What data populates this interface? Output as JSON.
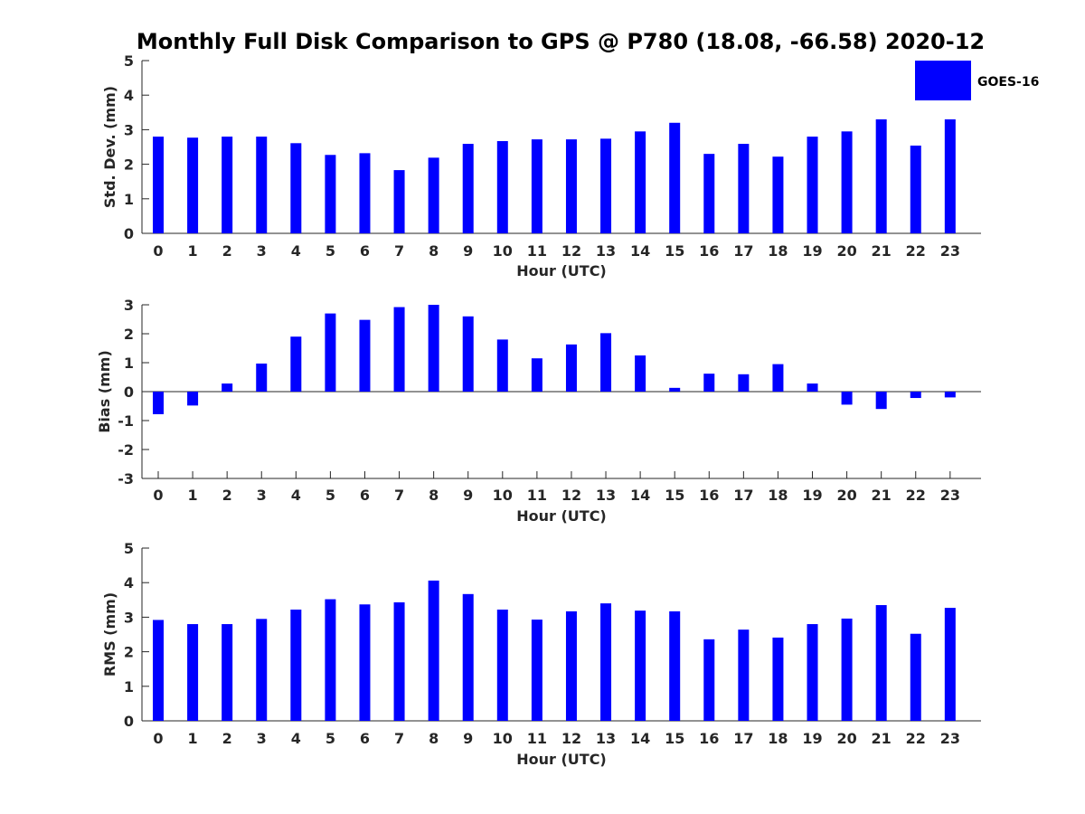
{
  "chart_data": [
    {
      "type": "bar",
      "title": "Monthly Full Disk Comparison to GPS @ P780 (18.08, -66.58) 2020-12",
      "xlabel": "Hour (UTC)",
      "ylabel": "Std. Dev. (mm)",
      "ylim": [
        0,
        5
      ],
      "yticks": [
        0,
        1,
        2,
        3,
        4,
        5
      ],
      "categories": [
        "0",
        "1",
        "2",
        "3",
        "4",
        "5",
        "6",
        "7",
        "8",
        "9",
        "10",
        "11",
        "12",
        "13",
        "14",
        "15",
        "16",
        "17",
        "18",
        "19",
        "20",
        "21",
        "22",
        "23"
      ],
      "series": [
        {
          "name": "GOES-16",
          "color": "#0000ff",
          "values": [
            2.8,
            2.77,
            2.8,
            2.8,
            2.61,
            2.27,
            2.32,
            1.83,
            2.19,
            2.59,
            2.67,
            2.72,
            2.72,
            2.74,
            2.95,
            3.2,
            2.3,
            2.59,
            2.22,
            2.8,
            2.95,
            3.3,
            2.54,
            3.3
          ]
        }
      ],
      "legend": {
        "entries": [
          "GOES-16"
        ],
        "position": "top-right"
      }
    },
    {
      "type": "bar",
      "xlabel": "Hour (UTC)",
      "ylabel": "Bias (mm)",
      "ylim": [
        -3,
        3
      ],
      "yticks": [
        -3,
        -2,
        -1,
        0,
        1,
        2,
        3
      ],
      "zero_line": true,
      "categories": [
        "0",
        "1",
        "2",
        "3",
        "4",
        "5",
        "6",
        "7",
        "8",
        "9",
        "10",
        "11",
        "12",
        "13",
        "14",
        "15",
        "16",
        "17",
        "18",
        "19",
        "20",
        "21",
        "22",
        "23"
      ],
      "series": [
        {
          "name": "GOES-16",
          "color": "#0000ff",
          "values": [
            -0.78,
            -0.48,
            0.28,
            0.97,
            1.9,
            2.7,
            2.48,
            2.92,
            3.0,
            2.6,
            1.8,
            1.15,
            1.63,
            2.02,
            1.25,
            0.13,
            0.62,
            0.6,
            0.95,
            0.28,
            -0.45,
            -0.6,
            -0.22,
            -0.2
          ]
        }
      ]
    },
    {
      "type": "bar",
      "xlabel": "Hour (UTC)",
      "ylabel": "RMS (mm)",
      "ylim": [
        0,
        5
      ],
      "yticks": [
        0,
        1,
        2,
        3,
        4,
        5
      ],
      "categories": [
        "0",
        "1",
        "2",
        "3",
        "4",
        "5",
        "6",
        "7",
        "8",
        "9",
        "10",
        "11",
        "12",
        "13",
        "14",
        "15",
        "16",
        "17",
        "18",
        "19",
        "20",
        "21",
        "22",
        "23"
      ],
      "series": [
        {
          "name": "GOES-16",
          "color": "#0000ff",
          "values": [
            2.92,
            2.8,
            2.8,
            2.95,
            3.22,
            3.52,
            3.37,
            3.43,
            4.06,
            3.67,
            3.22,
            2.93,
            3.17,
            3.4,
            3.19,
            3.17,
            2.36,
            2.64,
            2.41,
            2.8,
            2.96,
            3.35,
            2.52,
            3.27
          ]
        }
      ]
    }
  ]
}
